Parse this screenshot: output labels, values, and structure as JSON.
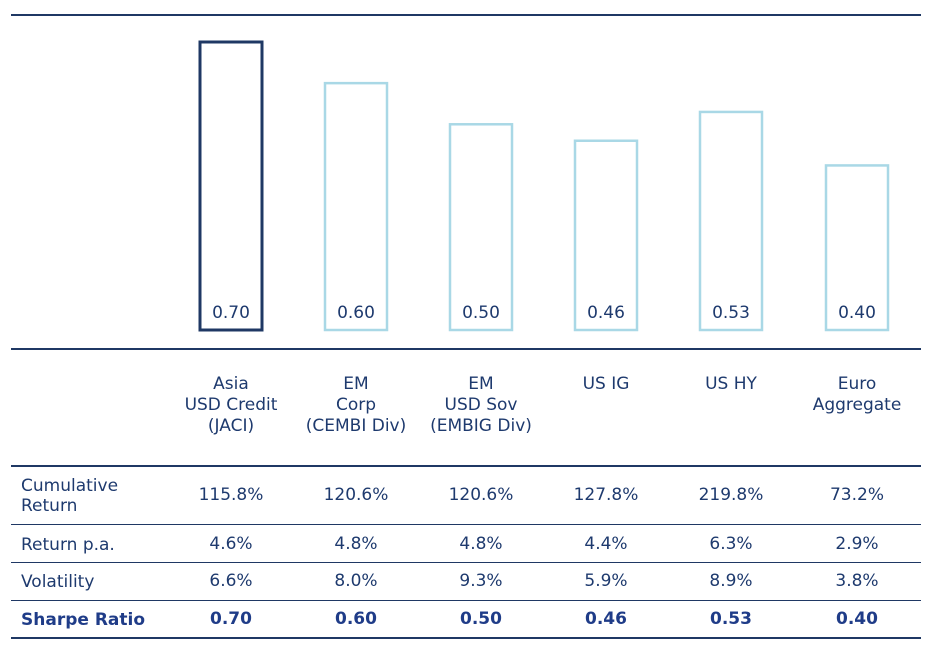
{
  "chart_data": {
    "type": "bar",
    "categories": [
      "Asia USD Credit (JACI)",
      "EM Corp (CEMBI Div)",
      "EM USD Sov (EMBIG Div)",
      "US IG",
      "US HY",
      "Euro Aggregate"
    ],
    "values": [
      0.7,
      0.6,
      0.5,
      0.46,
      0.53,
      0.4
    ],
    "value_labels": [
      "0.70",
      "0.60",
      "0.50",
      "0.46",
      "0.53",
      "0.40"
    ],
    "highlight_index": 0,
    "ylim": [
      0,
      0.7
    ],
    "grid": false,
    "colors": {
      "highlight": "#1f3864",
      "default": "#a9d8e6"
    }
  },
  "columns": [
    [
      "Asia",
      "USD Credit",
      "(JACI)"
    ],
    [
      "EM",
      "Corp",
      "(CEMBI Div)"
    ],
    [
      "EM",
      "USD Sov",
      "(EMBIG Div)"
    ],
    [
      "US IG"
    ],
    [
      "US HY"
    ],
    [
      "Euro",
      "Aggregate"
    ]
  ],
  "table": {
    "rows": [
      {
        "label": [
          "Cumulative",
          "Return"
        ],
        "bold": false,
        "values": [
          "115.8%",
          "120.6%",
          "120.6%",
          "127.8%",
          "219.8%",
          "73.2%"
        ]
      },
      {
        "label": [
          "Return p.a."
        ],
        "bold": false,
        "values": [
          "4.6%",
          "4.8%",
          "4.8%",
          "4.4%",
          "6.3%",
          "2.9%"
        ]
      },
      {
        "label": [
          "Volatility"
        ],
        "bold": false,
        "values": [
          "6.6%",
          "8.0%",
          "9.3%",
          "5.9%",
          "8.9%",
          "3.8%"
        ]
      },
      {
        "label": [
          "Sharpe Ratio"
        ],
        "bold": true,
        "values": [
          "0.70",
          "0.60",
          "0.50",
          "0.46",
          "0.53",
          "0.40"
        ]
      }
    ]
  }
}
